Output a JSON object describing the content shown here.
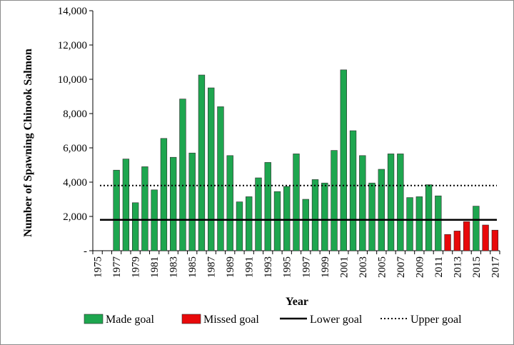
{
  "chart_data": {
    "type": "bar",
    "title": "",
    "xlabel": "Year",
    "ylabel": "Number of Spawning Chinook Salmon",
    "ylim": [
      0,
      14000
    ],
    "y_ticks": [
      {
        "value": 0,
        "label": "-"
      },
      {
        "value": 2000,
        "label": "2,000"
      },
      {
        "value": 4000,
        "label": "4,000"
      },
      {
        "value": 6000,
        "label": "6,000"
      },
      {
        "value": 8000,
        "label": "8,000"
      },
      {
        "value": 10000,
        "label": "10,000"
      },
      {
        "value": 12000,
        "label": "12,000"
      },
      {
        "value": 14000,
        "label": "14,000"
      }
    ],
    "categories": [
      1975,
      1976,
      1977,
      1978,
      1979,
      1980,
      1981,
      1982,
      1983,
      1984,
      1985,
      1986,
      1987,
      1988,
      1989,
      1990,
      1991,
      1992,
      1993,
      1994,
      1995,
      1996,
      1997,
      1998,
      1999,
      2000,
      2001,
      2002,
      2003,
      2004,
      2005,
      2006,
      2007,
      2008,
      2009,
      2010,
      2011,
      2012,
      2013,
      2014,
      2015,
      2016,
      2017
    ],
    "x_tick_labels": [
      "1975",
      "1977",
      "1979",
      "1981",
      "1983",
      "1985",
      "1987",
      "1989",
      "1991",
      "1993",
      "1995",
      "1997",
      "1999",
      "2001",
      "2003",
      "2005",
      "2007",
      "2009",
      "2011",
      "2013",
      "2015",
      "2017"
    ],
    "values": [
      null,
      null,
      4700,
      5350,
      2800,
      4900,
      3550,
      6550,
      5450,
      8850,
      5700,
      10250,
      9500,
      8400,
      5550,
      2850,
      3150,
      4250,
      5150,
      3450,
      3750,
      5650,
      3000,
      4150,
      3950,
      5850,
      10550,
      7000,
      5550,
      3950,
      4750,
      5650,
      5650,
      3100,
      3150,
      3850,
      3200,
      950,
      1150,
      1700,
      2600,
      1500,
      1200
    ],
    "status": [
      "none",
      "none",
      "made",
      "made",
      "made",
      "made",
      "made",
      "made",
      "made",
      "made",
      "made",
      "made",
      "made",
      "made",
      "made",
      "made",
      "made",
      "made",
      "made",
      "made",
      "made",
      "made",
      "made",
      "made",
      "made",
      "made",
      "made",
      "made",
      "made",
      "made",
      "made",
      "made",
      "made",
      "made",
      "made",
      "made",
      "made",
      "missed",
      "missed",
      "missed",
      "made",
      "missed",
      "missed"
    ],
    "lower_goal": 1800,
    "upper_goal": 3800,
    "colors": {
      "made": "#1ea64f",
      "missed": "#e8090a",
      "line": "#000000"
    },
    "legend": [
      {
        "key": "made",
        "label": "Made goal"
      },
      {
        "key": "missed",
        "label": "Missed goal"
      },
      {
        "key": "lower",
        "label": "Lower goal"
      },
      {
        "key": "upper",
        "label": "Upper goal"
      }
    ],
    "legend_position": "bottom",
    "grid": false
  }
}
